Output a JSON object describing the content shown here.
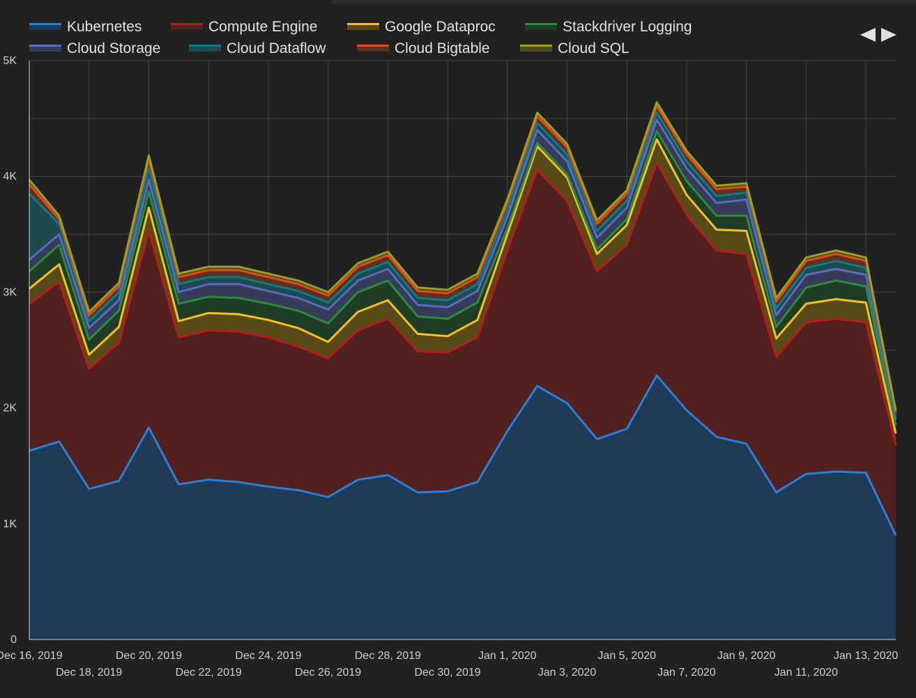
{
  "chart_data": {
    "type": "area",
    "stacked": true,
    "x": [
      "Dec 16, 2019",
      "Dec 17, 2019",
      "Dec 18, 2019",
      "Dec 19, 2019",
      "Dec 20, 2019",
      "Dec 21, 2019",
      "Dec 22, 2019",
      "Dec 23, 2019",
      "Dec 24, 2019",
      "Dec 25, 2019",
      "Dec 26, 2019",
      "Dec 27, 2019",
      "Dec 28, 2019",
      "Dec 29, 2019",
      "Dec 30, 2019",
      "Dec 31, 2019",
      "Jan 1, 2020",
      "Jan 2, 2020",
      "Jan 3, 2020",
      "Jan 4, 2020",
      "Jan 5, 2020",
      "Jan 6, 2020",
      "Jan 7, 2020",
      "Jan 8, 2020",
      "Jan 9, 2020",
      "Jan 10, 2020",
      "Jan 11, 2020",
      "Jan 12, 2020",
      "Jan 13, 2020",
      "Jan 14, 2020"
    ],
    "x_tick_labels": [
      "Dec 16, 2019",
      "Dec 18, 2019",
      "Dec 20, 2019",
      "Dec 22, 2019",
      "Dec 24, 2019",
      "Dec 26, 2019",
      "Dec 28, 2019",
      "Dec 30, 2019",
      "Jan 1, 2020",
      "Jan 3, 2020",
      "Jan 5, 2020",
      "Jan 7, 2020",
      "Jan 9, 2020",
      "Jan 11, 2020",
      "Jan 13, 2020"
    ],
    "y_tick_labels": [
      "0",
      "1K",
      "2K",
      "3K",
      "4K",
      "5K"
    ],
    "ylim": [
      0,
      5000
    ],
    "grid": true,
    "legend_position": "top",
    "series": [
      {
        "name": "Kubernetes",
        "color": "#2a7fd9",
        "fill": "#1f3a56",
        "values": [
          1630,
          1710,
          1300,
          1370,
          1830,
          1340,
          1380,
          1360,
          1320,
          1290,
          1230,
          1380,
          1420,
          1270,
          1280,
          1360,
          1800,
          2190,
          2040,
          1730,
          1820,
          2280,
          1980,
          1750,
          1690,
          1270,
          1430,
          1450,
          1440,
          900
        ]
      },
      {
        "name": "Compute Engine",
        "color": "#b71c1c",
        "fill": "#512121",
        "values": [
          1270,
          1380,
          1040,
          1190,
          1700,
          1270,
          1290,
          1300,
          1290,
          1240,
          1200,
          1290,
          1350,
          1220,
          1200,
          1250,
          1560,
          1870,
          1750,
          1450,
          1590,
          1840,
          1690,
          1610,
          1640,
          1170,
          1310,
          1320,
          1300,
          780
        ]
      },
      {
        "name": "Google Dataproc",
        "color": "#f9c11a",
        "fill": "#584a16",
        "values": [
          130,
          150,
          120,
          140,
          200,
          140,
          150,
          150,
          150,
          160,
          140,
          160,
          160,
          150,
          140,
          150,
          140,
          200,
          200,
          150,
          170,
          200,
          170,
          180,
          200,
          160,
          160,
          170,
          170,
          100
        ]
      },
      {
        "name": "Stackdriver Logging",
        "color": "#2e8b3e",
        "fill": "#1e3d24",
        "values": [
          150,
          170,
          130,
          140,
          140,
          150,
          140,
          140,
          140,
          150,
          160,
          170,
          170,
          150,
          150,
          150,
          50,
          30,
          30,
          40,
          50,
          70,
          120,
          120,
          130,
          100,
          140,
          160,
          140,
          70
        ]
      },
      {
        "name": "Cloud Storage",
        "color": "#5c6bc0",
        "fill": "#363b58",
        "values": [
          100,
          90,
          100,
          90,
          100,
          100,
          110,
          120,
          110,
          110,
          120,
          100,
          100,
          100,
          100,
          100,
          100,
          110,
          110,
          100,
          100,
          100,
          110,
          110,
          140,
          100,
          110,
          100,
          100,
          50
        ]
      },
      {
        "name": "Cloud Dataflow",
        "color": "#0e7c86",
        "fill": "#1c4a4e",
        "values": [
          570,
          90,
          60,
          70,
          100,
          70,
          60,
          60,
          60,
          60,
          60,
          60,
          60,
          60,
          60,
          60,
          60,
          60,
          60,
          60,
          60,
          60,
          60,
          60,
          60,
          60,
          60,
          70,
          60,
          30
        ]
      },
      {
        "name": "Cloud Bigtable",
        "color": "#e64a19",
        "fill": "#5a3223",
        "values": [
          80,
          40,
          50,
          50,
          80,
          60,
          60,
          60,
          60,
          60,
          60,
          60,
          60,
          60,
          60,
          60,
          60,
          60,
          60,
          60,
          60,
          60,
          60,
          60,
          50,
          60,
          60,
          60,
          60,
          30
        ]
      },
      {
        "name": "Cloud SQL",
        "color": "#9e9d24",
        "fill": "#4d4c22",
        "values": [
          40,
          30,
          30,
          30,
          30,
          30,
          30,
          30,
          30,
          30,
          30,
          30,
          30,
          30,
          30,
          30,
          30,
          30,
          30,
          30,
          30,
          30,
          30,
          30,
          30,
          30,
          30,
          30,
          30,
          20
        ]
      }
    ]
  }
}
